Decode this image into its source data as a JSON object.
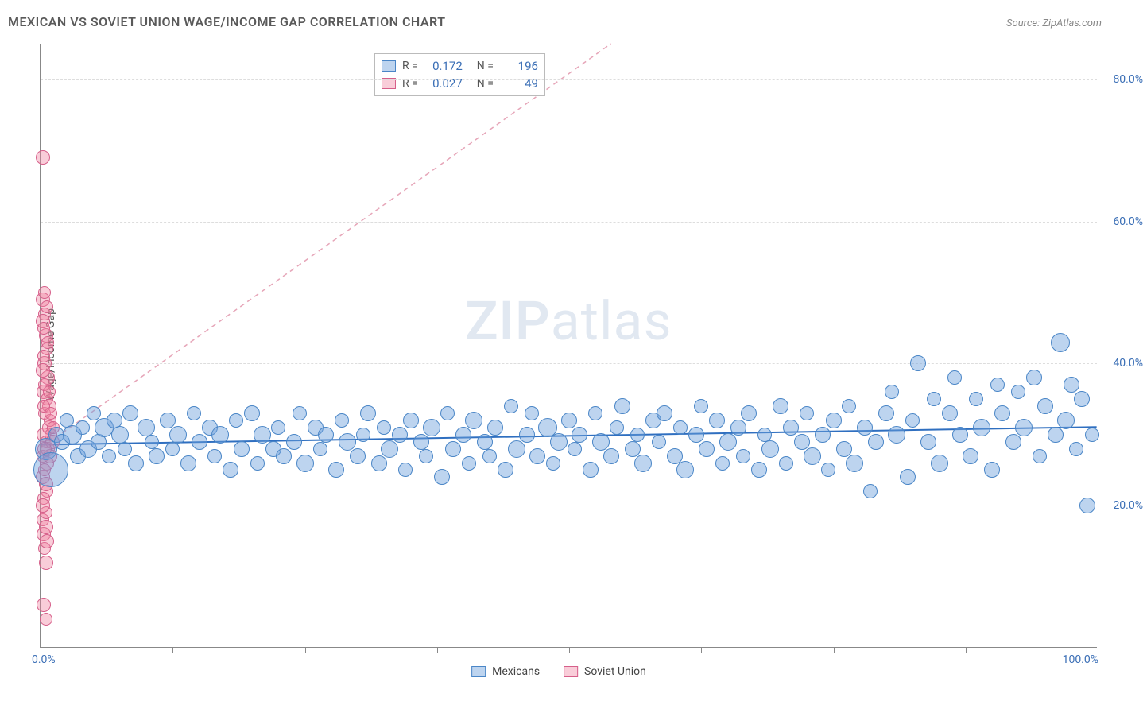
{
  "title": "MEXICAN VS SOVIET UNION WAGE/INCOME GAP CORRELATION CHART",
  "source": "Source: ZipAtlas.com",
  "watermark_a": "ZIP",
  "watermark_b": "atlas",
  "ylabel": "Wage/Income Gap",
  "xaxis": {
    "min_label": "0.0%",
    "max_label": "100.0%",
    "min": 0,
    "max": 100,
    "tick_positions": [
      0,
      12.5,
      25,
      37.5,
      50,
      62.5,
      75,
      87.5,
      100
    ]
  },
  "yaxis": {
    "min": 0,
    "max": 85,
    "ticks": [
      {
        "v": 20,
        "label": "20.0%"
      },
      {
        "v": 40,
        "label": "40.0%"
      },
      {
        "v": 60,
        "label": "60.0%"
      },
      {
        "v": 80,
        "label": "80.0%"
      }
    ]
  },
  "colors": {
    "blue_fill": "rgba(108,160,220,0.45)",
    "blue_stroke": "#4a86c7",
    "pink_fill": "rgba(240,130,160,0.40)",
    "pink_stroke": "#d65f8a",
    "grid": "#dddddd",
    "axis": "#888888",
    "label_blue": "#3b6fb6",
    "trend_blue": "#2f6fc0",
    "trend_pink": "#e6a5b8",
    "title_color": "#5a5a5a",
    "source_color": "#888888",
    "background": "#ffffff"
  },
  "stats": {
    "series": [
      {
        "color": "blue",
        "R": "0.172",
        "N": "196"
      },
      {
        "color": "pink",
        "R": "0.027",
        "N": "49"
      }
    ]
  },
  "legend": {
    "items": [
      {
        "color": "blue",
        "label": "Mexicans"
      },
      {
        "color": "pink",
        "label": "Soviet Union"
      }
    ]
  },
  "trend_lines": {
    "blue": {
      "x1": 0,
      "y1": 28.5,
      "x2": 100,
      "y2": 31.0,
      "width": 2,
      "dash": "none"
    },
    "pink": {
      "x1": 0,
      "y1": 28.0,
      "x2": 54,
      "y2": 85.0,
      "width": 1.5,
      "dash": "6,5"
    }
  },
  "marker_style": {
    "default_radius": 8,
    "stroke_width": 1.2,
    "opacity": 0.55
  },
  "series_blue": [
    {
      "x": 0.5,
      "y": 28,
      "r": 14
    },
    {
      "x": 1.0,
      "y": 25,
      "r": 22
    },
    {
      "x": 1.5,
      "y": 30,
      "r": 10
    },
    {
      "x": 2,
      "y": 29,
      "r": 10
    },
    {
      "x": 2.5,
      "y": 32,
      "r": 9
    },
    {
      "x": 3,
      "y": 30,
      "r": 12
    },
    {
      "x": 3.5,
      "y": 27,
      "r": 10
    },
    {
      "x": 4,
      "y": 31,
      "r": 9
    },
    {
      "x": 4.5,
      "y": 28,
      "r": 11
    },
    {
      "x": 5,
      "y": 33,
      "r": 9
    },
    {
      "x": 5.5,
      "y": 29,
      "r": 10
    },
    {
      "x": 6,
      "y": 31,
      "r": 12
    },
    {
      "x": 6.5,
      "y": 27,
      "r": 9
    },
    {
      "x": 7,
      "y": 32,
      "r": 10
    },
    {
      "x": 7.5,
      "y": 30,
      "r": 11
    },
    {
      "x": 8,
      "y": 28,
      "r": 9
    },
    {
      "x": 8.5,
      "y": 33,
      "r": 10
    },
    {
      "x": 9,
      "y": 26,
      "r": 10
    },
    {
      "x": 10,
      "y": 31,
      "r": 11
    },
    {
      "x": 10.5,
      "y": 29,
      "r": 9
    },
    {
      "x": 11,
      "y": 27,
      "r": 10
    },
    {
      "x": 12,
      "y": 32,
      "r": 10
    },
    {
      "x": 12.5,
      "y": 28,
      "r": 9
    },
    {
      "x": 13,
      "y": 30,
      "r": 11
    },
    {
      "x": 14,
      "y": 26,
      "r": 10
    },
    {
      "x": 14.5,
      "y": 33,
      "r": 9
    },
    {
      "x": 15,
      "y": 29,
      "r": 10
    },
    {
      "x": 16,
      "y": 31,
      "r": 10
    },
    {
      "x": 16.5,
      "y": 27,
      "r": 9
    },
    {
      "x": 17,
      "y": 30,
      "r": 11
    },
    {
      "x": 18,
      "y": 25,
      "r": 10
    },
    {
      "x": 18.5,
      "y": 32,
      "r": 9
    },
    {
      "x": 19,
      "y": 28,
      "r": 10
    },
    {
      "x": 20,
      "y": 33,
      "r": 10
    },
    {
      "x": 20.5,
      "y": 26,
      "r": 9
    },
    {
      "x": 21,
      "y": 30,
      "r": 11
    },
    {
      "x": 22,
      "y": 28,
      "r": 10
    },
    {
      "x": 22.5,
      "y": 31,
      "r": 9
    },
    {
      "x": 23,
      "y": 27,
      "r": 10
    },
    {
      "x": 24,
      "y": 29,
      "r": 10
    },
    {
      "x": 24.5,
      "y": 33,
      "r": 9
    },
    {
      "x": 25,
      "y": 26,
      "r": 11
    },
    {
      "x": 26,
      "y": 31,
      "r": 10
    },
    {
      "x": 26.5,
      "y": 28,
      "r": 9
    },
    {
      "x": 27,
      "y": 30,
      "r": 10
    },
    {
      "x": 28,
      "y": 25,
      "r": 10
    },
    {
      "x": 28.5,
      "y": 32,
      "r": 9
    },
    {
      "x": 29,
      "y": 29,
      "r": 11
    },
    {
      "x": 30,
      "y": 27,
      "r": 10
    },
    {
      "x": 30.5,
      "y": 30,
      "r": 9
    },
    {
      "x": 31,
      "y": 33,
      "r": 10
    },
    {
      "x": 32,
      "y": 26,
      "r": 10
    },
    {
      "x": 32.5,
      "y": 31,
      "r": 9
    },
    {
      "x": 33,
      "y": 28,
      "r": 11
    },
    {
      "x": 34,
      "y": 30,
      "r": 10
    },
    {
      "x": 34.5,
      "y": 25,
      "r": 9
    },
    {
      "x": 35,
      "y": 32,
      "r": 10
    },
    {
      "x": 36,
      "y": 29,
      "r": 10
    },
    {
      "x": 36.5,
      "y": 27,
      "r": 9
    },
    {
      "x": 37,
      "y": 31,
      "r": 11
    },
    {
      "x": 38,
      "y": 24,
      "r": 10
    },
    {
      "x": 38.5,
      "y": 33,
      "r": 9
    },
    {
      "x": 39,
      "y": 28,
      "r": 10
    },
    {
      "x": 40,
      "y": 30,
      "r": 10
    },
    {
      "x": 40.5,
      "y": 26,
      "r": 9
    },
    {
      "x": 41,
      "y": 32,
      "r": 11
    },
    {
      "x": 42,
      "y": 29,
      "r": 10
    },
    {
      "x": 42.5,
      "y": 27,
      "r": 9
    },
    {
      "x": 43,
      "y": 31,
      "r": 10
    },
    {
      "x": 44,
      "y": 25,
      "r": 10
    },
    {
      "x": 44.5,
      "y": 34,
      "r": 9
    },
    {
      "x": 45,
      "y": 28,
      "r": 11
    },
    {
      "x": 46,
      "y": 30,
      "r": 10
    },
    {
      "x": 46.5,
      "y": 33,
      "r": 9
    },
    {
      "x": 47,
      "y": 27,
      "r": 10
    },
    {
      "x": 48,
      "y": 31,
      "r": 12
    },
    {
      "x": 48.5,
      "y": 26,
      "r": 9
    },
    {
      "x": 49,
      "y": 29,
      "r": 11
    },
    {
      "x": 50,
      "y": 32,
      "r": 10
    },
    {
      "x": 50.5,
      "y": 28,
      "r": 9
    },
    {
      "x": 51,
      "y": 30,
      "r": 10
    },
    {
      "x": 52,
      "y": 25,
      "r": 10
    },
    {
      "x": 52.5,
      "y": 33,
      "r": 9
    },
    {
      "x": 53,
      "y": 29,
      "r": 11
    },
    {
      "x": 54,
      "y": 27,
      "r": 10
    },
    {
      "x": 54.5,
      "y": 31,
      "r": 9
    },
    {
      "x": 55,
      "y": 34,
      "r": 10
    },
    {
      "x": 56,
      "y": 28,
      "r": 10
    },
    {
      "x": 56.5,
      "y": 30,
      "r": 9
    },
    {
      "x": 57,
      "y": 26,
      "r": 11
    },
    {
      "x": 58,
      "y": 32,
      "r": 10
    },
    {
      "x": 58.5,
      "y": 29,
      "r": 9
    },
    {
      "x": 59,
      "y": 33,
      "r": 10
    },
    {
      "x": 60,
      "y": 27,
      "r": 10
    },
    {
      "x": 60.5,
      "y": 31,
      "r": 9
    },
    {
      "x": 61,
      "y": 25,
      "r": 11
    },
    {
      "x": 62,
      "y": 30,
      "r": 10
    },
    {
      "x": 62.5,
      "y": 34,
      "r": 9
    },
    {
      "x": 63,
      "y": 28,
      "r": 10
    },
    {
      "x": 64,
      "y": 32,
      "r": 10
    },
    {
      "x": 64.5,
      "y": 26,
      "r": 9
    },
    {
      "x": 65,
      "y": 29,
      "r": 11
    },
    {
      "x": 66,
      "y": 31,
      "r": 10
    },
    {
      "x": 66.5,
      "y": 27,
      "r": 9
    },
    {
      "x": 67,
      "y": 33,
      "r": 10
    },
    {
      "x": 68,
      "y": 25,
      "r": 10
    },
    {
      "x": 68.5,
      "y": 30,
      "r": 9
    },
    {
      "x": 69,
      "y": 28,
      "r": 11
    },
    {
      "x": 70,
      "y": 34,
      "r": 10
    },
    {
      "x": 70.5,
      "y": 26,
      "r": 9
    },
    {
      "x": 71,
      "y": 31,
      "r": 10
    },
    {
      "x": 72,
      "y": 29,
      "r": 10
    },
    {
      "x": 72.5,
      "y": 33,
      "r": 9
    },
    {
      "x": 73,
      "y": 27,
      "r": 11
    },
    {
      "x": 74,
      "y": 30,
      "r": 10
    },
    {
      "x": 74.5,
      "y": 25,
      "r": 9
    },
    {
      "x": 75,
      "y": 32,
      "r": 10
    },
    {
      "x": 76,
      "y": 28,
      "r": 10
    },
    {
      "x": 76.5,
      "y": 34,
      "r": 9
    },
    {
      "x": 77,
      "y": 26,
      "r": 11
    },
    {
      "x": 78,
      "y": 31,
      "r": 10
    },
    {
      "x": 78.5,
      "y": 22,
      "r": 9
    },
    {
      "x": 79,
      "y": 29,
      "r": 10
    },
    {
      "x": 80,
      "y": 33,
      "r": 10
    },
    {
      "x": 80.5,
      "y": 36,
      "r": 9
    },
    {
      "x": 81,
      "y": 30,
      "r": 11
    },
    {
      "x": 82,
      "y": 24,
      "r": 10
    },
    {
      "x": 82.5,
      "y": 32,
      "r": 9
    },
    {
      "x": 83,
      "y": 40,
      "r": 10
    },
    {
      "x": 84,
      "y": 29,
      "r": 10
    },
    {
      "x": 84.5,
      "y": 35,
      "r": 9
    },
    {
      "x": 85,
      "y": 26,
      "r": 11
    },
    {
      "x": 86,
      "y": 33,
      "r": 10
    },
    {
      "x": 86.5,
      "y": 38,
      "r": 9
    },
    {
      "x": 87,
      "y": 30,
      "r": 10
    },
    {
      "x": 88,
      "y": 27,
      "r": 10
    },
    {
      "x": 88.5,
      "y": 35,
      "r": 9
    },
    {
      "x": 89,
      "y": 31,
      "r": 11
    },
    {
      "x": 90,
      "y": 25,
      "r": 10
    },
    {
      "x": 90.5,
      "y": 37,
      "r": 9
    },
    {
      "x": 91,
      "y": 33,
      "r": 10
    },
    {
      "x": 92,
      "y": 29,
      "r": 10
    },
    {
      "x": 92.5,
      "y": 36,
      "r": 9
    },
    {
      "x": 93,
      "y": 31,
      "r": 11
    },
    {
      "x": 94,
      "y": 38,
      "r": 10
    },
    {
      "x": 94.5,
      "y": 27,
      "r": 9
    },
    {
      "x": 95,
      "y": 34,
      "r": 10
    },
    {
      "x": 96,
      "y": 30,
      "r": 10
    },
    {
      "x": 96.5,
      "y": 43,
      "r": 12
    },
    {
      "x": 97,
      "y": 32,
      "r": 11
    },
    {
      "x": 97.5,
      "y": 37,
      "r": 10
    },
    {
      "x": 98,
      "y": 28,
      "r": 9
    },
    {
      "x": 98.5,
      "y": 35,
      "r": 10
    },
    {
      "x": 99,
      "y": 20,
      "r": 10
    },
    {
      "x": 99.5,
      "y": 30,
      "r": 9
    }
  ],
  "series_pink": [
    {
      "x": 0.2,
      "y": 27,
      "r": 8
    },
    {
      "x": 0.3,
      "y": 30,
      "r": 9
    },
    {
      "x": 0.4,
      "y": 33,
      "r": 8
    },
    {
      "x": 0.2,
      "y": 24,
      "r": 9
    },
    {
      "x": 0.5,
      "y": 29,
      "r": 8
    },
    {
      "x": 0.3,
      "y": 36,
      "r": 9
    },
    {
      "x": 0.6,
      "y": 22,
      "r": 8
    },
    {
      "x": 0.4,
      "y": 40,
      "r": 9
    },
    {
      "x": 0.2,
      "y": 18,
      "r": 8
    },
    {
      "x": 0.5,
      "y": 44,
      "r": 9
    },
    {
      "x": 0.3,
      "y": 21,
      "r": 8
    },
    {
      "x": 0.7,
      "y": 38,
      "r": 9
    },
    {
      "x": 0.4,
      "y": 47,
      "r": 8
    },
    {
      "x": 0.2,
      "y": 49,
      "r": 9
    },
    {
      "x": 0.6,
      "y": 42,
      "r": 8
    },
    {
      "x": 0.3,
      "y": 16,
      "r": 9
    },
    {
      "x": 0.5,
      "y": 19,
      "r": 8
    },
    {
      "x": 0.8,
      "y": 31,
      "r": 9
    },
    {
      "x": 0.4,
      "y": 14,
      "r": 8
    },
    {
      "x": 0.2,
      "y": 46,
      "r": 9
    },
    {
      "x": 0.6,
      "y": 35,
      "r": 8
    },
    {
      "x": 0.3,
      "y": 6,
      "r": 9
    },
    {
      "x": 0.5,
      "y": 4,
      "r": 8
    },
    {
      "x": 0.7,
      "y": 28,
      "r": 9
    },
    {
      "x": 0.4,
      "y": 50,
      "r": 8
    },
    {
      "x": 0.2,
      "y": 69,
      "r": 9
    },
    {
      "x": 0.9,
      "y": 32,
      "r": 8
    },
    {
      "x": 0.6,
      "y": 26,
      "r": 9
    },
    {
      "x": 0.3,
      "y": 41,
      "r": 8
    },
    {
      "x": 0.5,
      "y": 23,
      "r": 9
    },
    {
      "x": 1.0,
      "y": 30,
      "r": 8
    },
    {
      "x": 0.8,
      "y": 34,
      "r": 9
    },
    {
      "x": 0.4,
      "y": 37,
      "r": 8
    },
    {
      "x": 0.2,
      "y": 20,
      "r": 9
    },
    {
      "x": 0.6,
      "y": 48,
      "r": 8
    },
    {
      "x": 1.1,
      "y": 29,
      "r": 9
    },
    {
      "x": 0.3,
      "y": 45,
      "r": 8
    },
    {
      "x": 0.5,
      "y": 17,
      "r": 9
    },
    {
      "x": 0.7,
      "y": 43,
      "r": 8
    },
    {
      "x": 0.9,
      "y": 27,
      "r": 9
    },
    {
      "x": 0.4,
      "y": 25,
      "r": 8
    },
    {
      "x": 0.2,
      "y": 39,
      "r": 9
    },
    {
      "x": 1.2,
      "y": 31,
      "r": 8
    },
    {
      "x": 0.6,
      "y": 15,
      "r": 9
    },
    {
      "x": 0.3,
      "y": 34,
      "r": 8
    },
    {
      "x": 0.5,
      "y": 12,
      "r": 9
    },
    {
      "x": 0.8,
      "y": 36,
      "r": 8
    },
    {
      "x": 0.4,
      "y": 28,
      "r": 9
    },
    {
      "x": 1.0,
      "y": 33,
      "r": 8
    }
  ]
}
